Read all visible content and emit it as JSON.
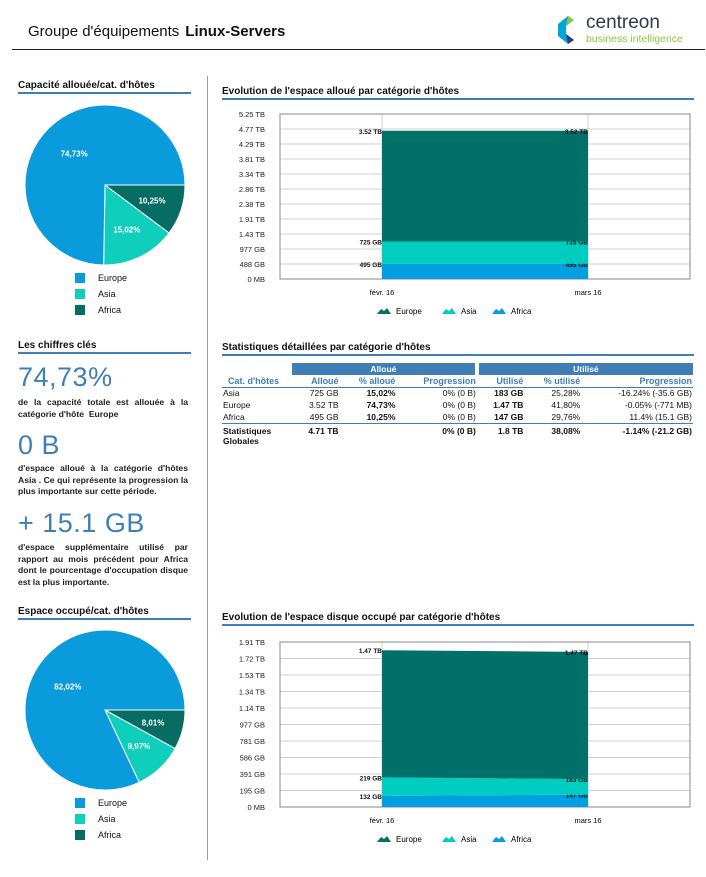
{
  "header": {
    "title_prefix": "Groupe d'équipements",
    "title_group": "Linux-Servers",
    "logo_name": "centreon",
    "logo_tagline": "business intelligence"
  },
  "colors": {
    "accent": "#3f7fb5",
    "europe_pie": "#0a9bdc",
    "asia": "#0fcfbc",
    "africa_pie": "#076c63",
    "area_europe": "#007068",
    "area_asia": "#00ccc0",
    "area_africa": "#009fe0"
  },
  "left": {
    "pie1": {
      "title": "Capacité allouée/cat. d'hôtes",
      "slices": [
        {
          "name": "Africa",
          "value": 10.25,
          "label": "10,25%"
        },
        {
          "name": "Asia",
          "value": 15.02,
          "label": "15,02%"
        },
        {
          "name": "Europe",
          "value": 74.73,
          "label": "74,73%"
        }
      ],
      "legend": [
        "Europe",
        "Asia",
        "Africa"
      ]
    },
    "key_title": "Les chiffres clés",
    "kpi1": {
      "value": "74,73%",
      "text": "de la capacité totale est allouée à la catégorie d'hôte",
      "bold": "Europe"
    },
    "kpi2": {
      "value": "0 B",
      "text_pre": "d'espace alloué à la catégorie d'hôtes",
      "bold": "Asia",
      "text_post": ". Ce qui représente la progression la plus importante sur cette période."
    },
    "kpi3": {
      "value": "+ 15.1 GB",
      "text_pre": "d'espace supplémentaire utilisé par rapport au mois précédent pour",
      "bold": "Africa",
      "text_post": "dont le pourcentage d'occupation disque est la plus importante."
    },
    "pie2": {
      "title": "Espace occupé/cat. d'hôtes",
      "slices": [
        {
          "name": "Africa",
          "value": 8.01,
          "label": "8,01%"
        },
        {
          "name": "Asia",
          "value": 9.97,
          "label": "9,97%"
        },
        {
          "name": "Europe",
          "value": 82.02,
          "label": "82,02%"
        }
      ],
      "legend": [
        "Europe",
        "Asia",
        "Africa"
      ]
    }
  },
  "chart_data": [
    {
      "type": "area",
      "stacked": true,
      "title": "Evolution de l'espace alloué par catégorie d'hôtes",
      "categories": [
        "févr. 16",
        "mars 16"
      ],
      "unit": "GB",
      "yticks": [
        {
          "label": "0 MB",
          "value": 0
        },
        {
          "label": "488 GB",
          "value": 488
        },
        {
          "label": "977 GB",
          "value": 977
        },
        {
          "label": "1.43 TB",
          "value": 1465
        },
        {
          "label": "1.91 TB",
          "value": 1953
        },
        {
          "label": "2.38 TB",
          "value": 2441
        },
        {
          "label": "2.86 TB",
          "value": 2930
        },
        {
          "label": "3.34 TB",
          "value": 3418
        },
        {
          "label": "3.81 TB",
          "value": 3906
        },
        {
          "label": "4.29 TB",
          "value": 4395
        },
        {
          "label": "4.77 TB",
          "value": 4883
        },
        {
          "label": "5.25 TB",
          "value": 5371
        }
      ],
      "ylim": [
        0,
        5371
      ],
      "grid": true,
      "legend_position": "bottom",
      "series": [
        {
          "name": "Africa",
          "values": [
            495,
            495
          ],
          "labels": [
            "495 GB",
            "495 GB"
          ]
        },
        {
          "name": "Asia",
          "values": [
            725,
            725
          ],
          "labels": [
            "725 GB",
            "725 GB"
          ]
        },
        {
          "name": "Europe",
          "values": [
            3604,
            3604
          ],
          "labels": [
            "3.52 TB",
            "3.52 TB"
          ]
        }
      ],
      "legend": [
        "Europe",
        "Asia",
        "Africa"
      ]
    },
    {
      "type": "area",
      "stacked": true,
      "title": "Evolution de l'espace disque occupé par catégorie d'hôtes",
      "categories": [
        "févr. 16",
        "mars 16"
      ],
      "unit": "GB",
      "yticks": [
        {
          "label": "0 MB",
          "value": 0
        },
        {
          "label": "195 GB",
          "value": 195
        },
        {
          "label": "391 GB",
          "value": 391
        },
        {
          "label": "586 GB",
          "value": 586
        },
        {
          "label": "781 GB",
          "value": 781
        },
        {
          "label": "977 GB",
          "value": 977
        },
        {
          "label": "1.14 TB",
          "value": 1172
        },
        {
          "label": "1.34 TB",
          "value": 1367
        },
        {
          "label": "1.53 TB",
          "value": 1563
        },
        {
          "label": "1.72 TB",
          "value": 1758
        },
        {
          "label": "1.91 TB",
          "value": 1953
        }
      ],
      "ylim": [
        0,
        1953
      ],
      "grid": true,
      "legend_position": "bottom",
      "series": [
        {
          "name": "Africa",
          "values": [
            132,
            147
          ],
          "labels": [
            "132 GB",
            "147 GB"
          ]
        },
        {
          "name": "Asia",
          "values": [
            219,
            183
          ],
          "labels": [
            "219 GB",
            "183 GB"
          ]
        },
        {
          "name": "Europe",
          "values": [
            1505,
            1505
          ],
          "labels": [
            "1.47 TB",
            "1.47 TB"
          ]
        }
      ],
      "legend": [
        "Europe",
        "Asia",
        "Africa"
      ]
    }
  ],
  "table": {
    "title": "Statistiques détaillées par catégorie d'hôtes",
    "band_alloue": "Alloué",
    "band_utilise": "Utilisé",
    "columns": [
      "Cat. d'hôtes",
      "Alloué",
      "% alloué",
      "Progression",
      "Utilisé",
      "% utilisé",
      "Progression"
    ],
    "rows": [
      [
        "Asia",
        "725 GB",
        "15,02%",
        "0% (0 B)",
        "183 GB",
        "25,28%",
        "-16.24% (-35.6 GB)"
      ],
      [
        "Europe",
        "3.52 TB",
        "74,73%",
        "0% (0 B)",
        "1.47 TB",
        "41,80%",
        "-0.05% (-771 MB)"
      ],
      [
        "Africa",
        "495 GB",
        "10,25%",
        "0% (0 B)",
        "147 GB",
        "29,76%",
        "11.4% (15.1 GB)"
      ]
    ],
    "total": [
      "Statistiques Globales",
      "4.71 TB",
      "",
      "0% (0 B)",
      "1.8 TB",
      "38,08%",
      "-1.14% (-21.2 GB)"
    ]
  }
}
